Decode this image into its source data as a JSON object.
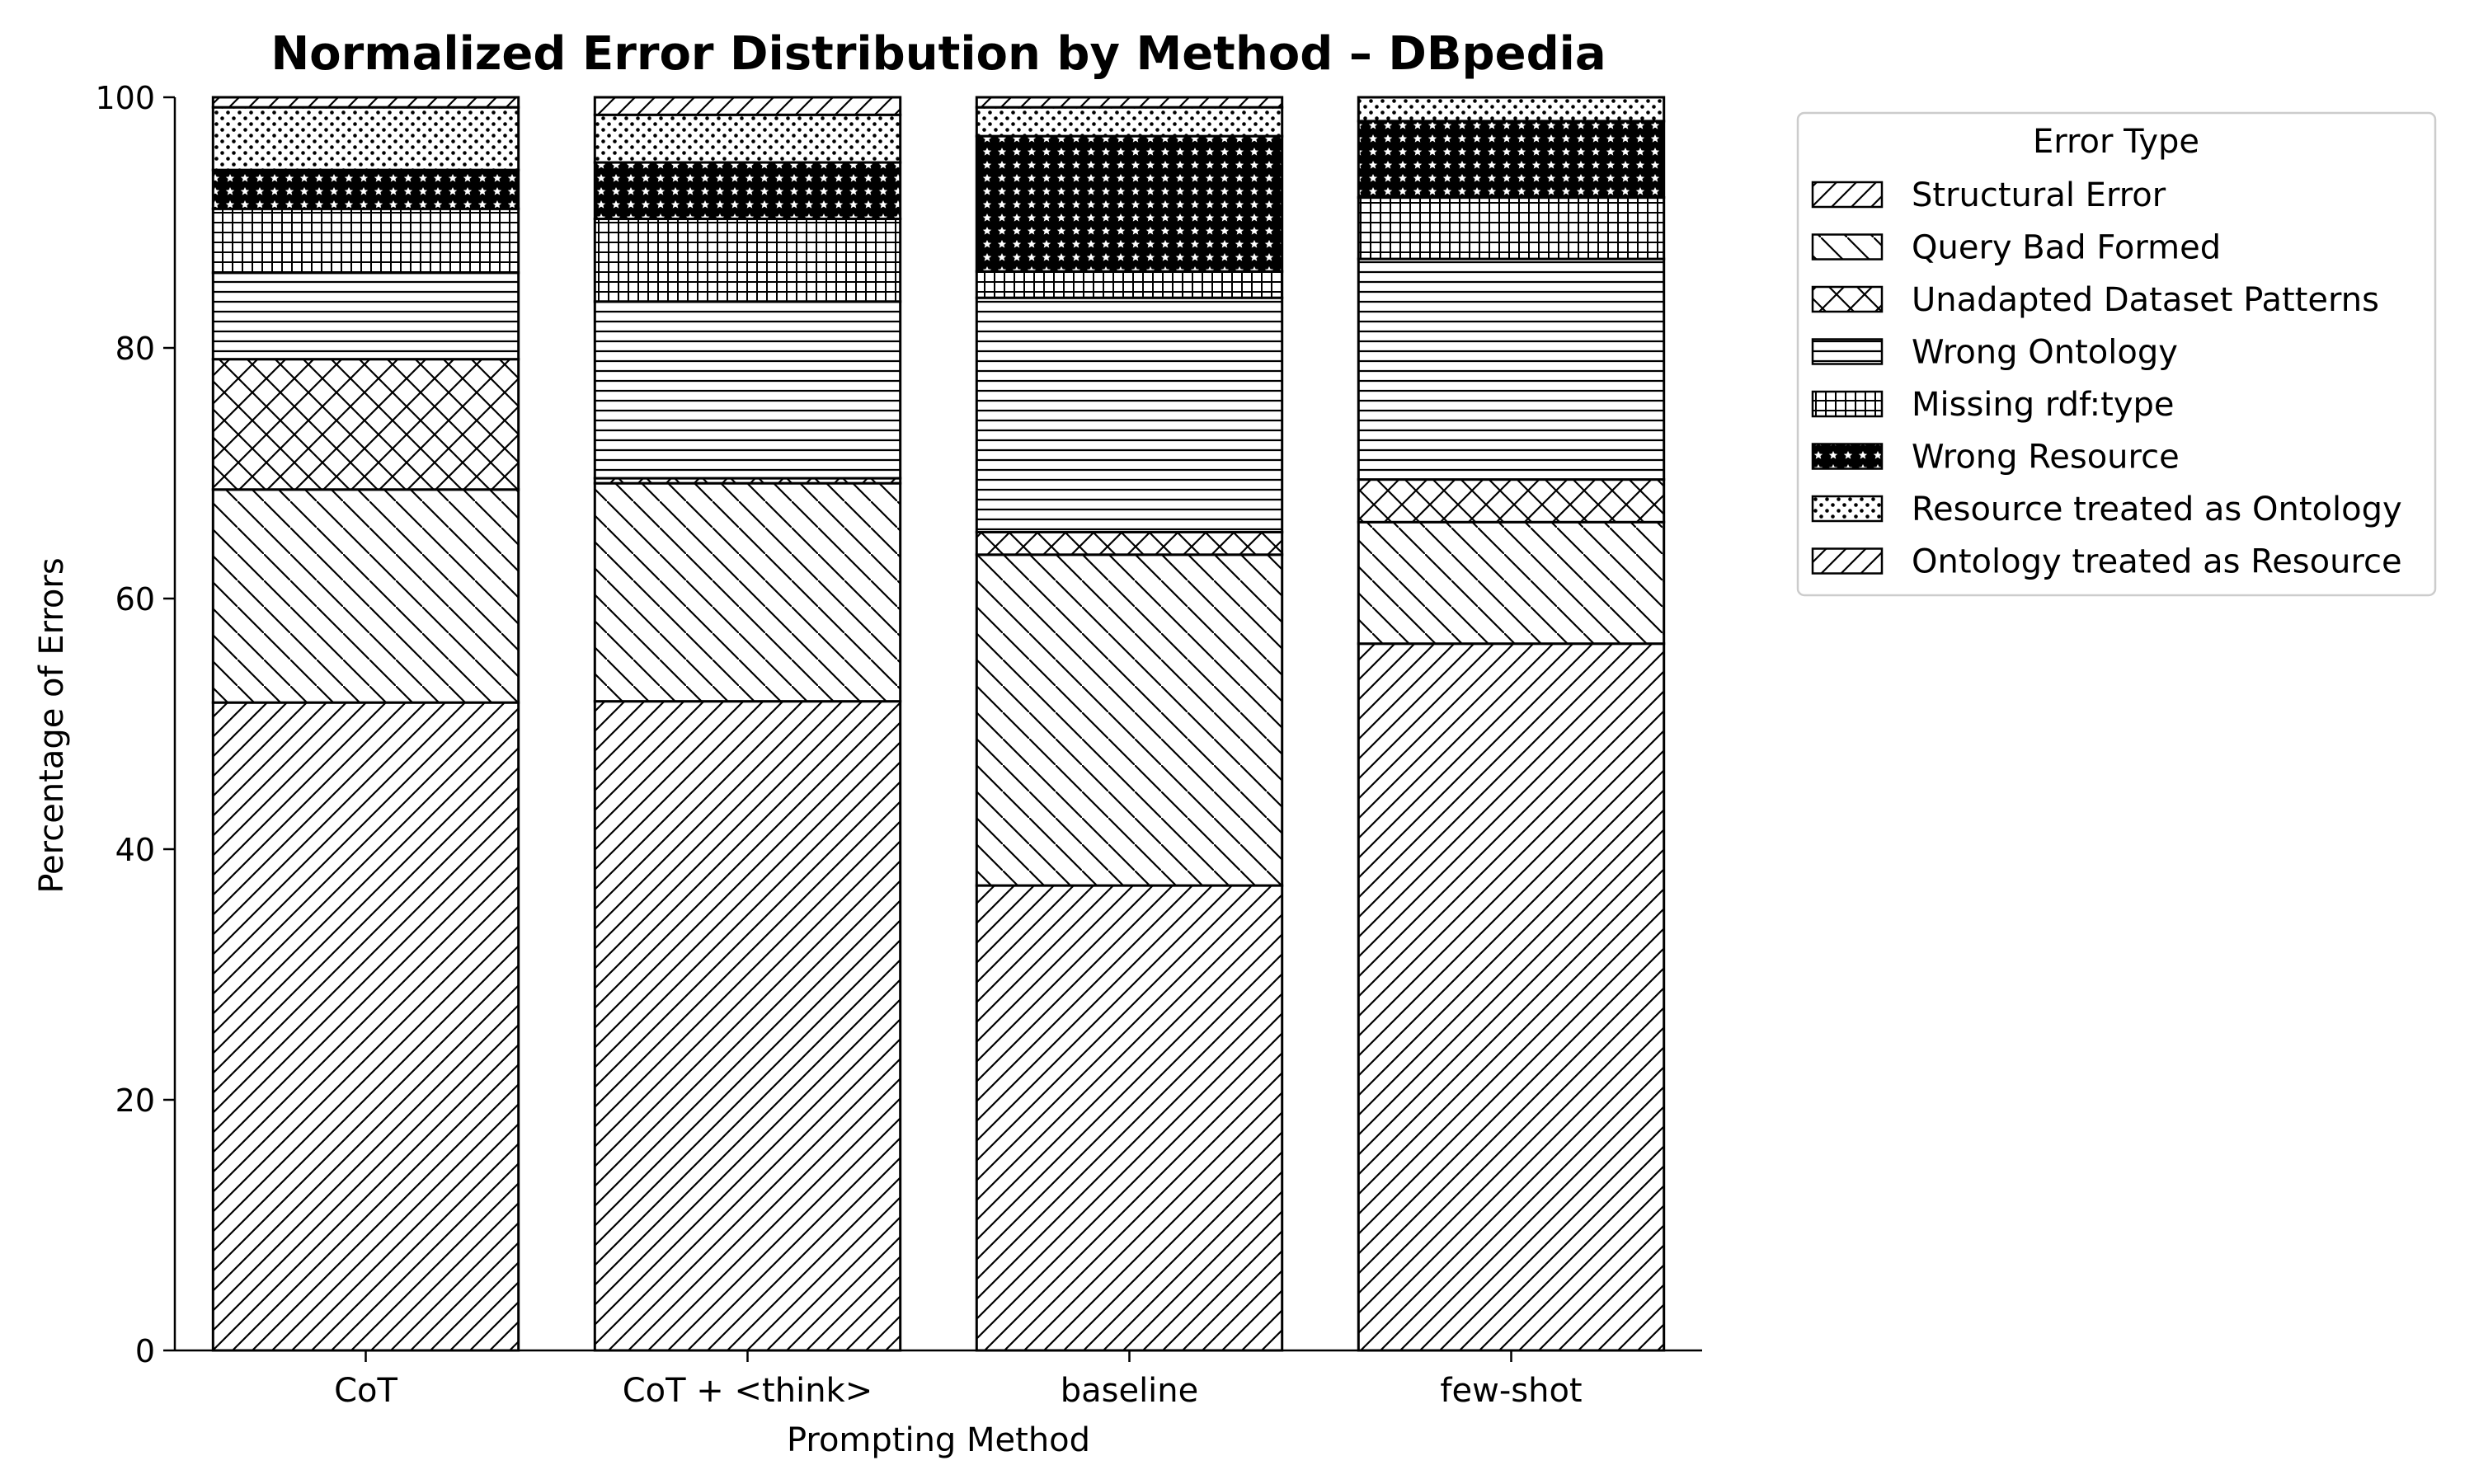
{
  "chart_data": {
    "type": "bar",
    "stacked": true,
    "title": "Normalized Error Distribution by Method – DBpedia",
    "xlabel": "Prompting Method",
    "ylabel": "Percentage of Errors",
    "ylim": [
      0,
      100
    ],
    "yticks": [
      0,
      20,
      40,
      60,
      80,
      100
    ],
    "grid": false,
    "legend_position": "outside-right-top",
    "legend_title": "Error Type",
    "categories": [
      "CoT",
      "CoT + <think>",
      "baseline",
      "few-shot"
    ],
    "series": [
      {
        "name": "Structural Error",
        "hatch": "diagonal-up",
        "values": [
          51.7,
          51.8,
          37.1,
          56.4
        ]
      },
      {
        "name": "Query Bad Formed",
        "hatch": "diagonal-down",
        "values": [
          17.0,
          17.4,
          26.4,
          9.7
        ]
      },
      {
        "name": "Unadapted Dataset Patterns",
        "hatch": "cross",
        "values": [
          10.4,
          0.4,
          1.8,
          3.4
        ]
      },
      {
        "name": "Wrong Ontology",
        "hatch": "horizontal",
        "values": [
          6.9,
          14.1,
          18.7,
          17.6
        ]
      },
      {
        "name": "Missing rdf:type",
        "hatch": "grid",
        "values": [
          5.1,
          6.6,
          2.1,
          4.9
        ]
      },
      {
        "name": "Wrong Resource",
        "hatch": "stars",
        "values": [
          3.1,
          4.5,
          10.8,
          6.1
        ]
      },
      {
        "name": "Resource treated as Ontology",
        "hatch": "dots",
        "values": [
          5.0,
          3.8,
          2.3,
          1.9
        ]
      },
      {
        "name": "Ontology treated as Resource",
        "hatch": "diagonal-up",
        "values": [
          0.8,
          1.4,
          0.8,
          0.0
        ]
      }
    ]
  }
}
